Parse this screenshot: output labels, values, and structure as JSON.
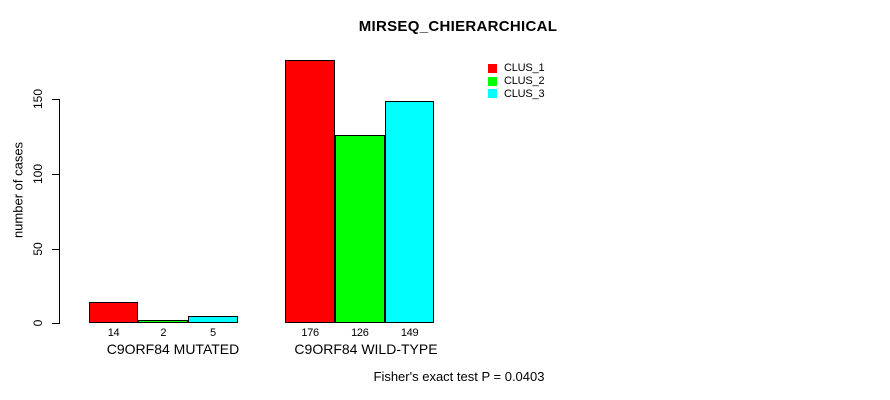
{
  "chart_data": {
    "type": "bar",
    "title": "MIRSEQ_CHIERARCHICAL",
    "ylabel": "number of cases",
    "xlabel": "",
    "categories": [
      "C9ORF84 MUTATED",
      "C9ORF84 WILD-TYPE"
    ],
    "series": [
      {
        "name": "CLUS_1",
        "color": "#FF0000",
        "values": [
          14,
          176
        ]
      },
      {
        "name": "CLUS_2",
        "color": "#00FF00",
        "values": [
          2,
          126
        ]
      },
      {
        "name": "CLUS_3",
        "color": "#00FFFF",
        "values": [
          5,
          149
        ]
      }
    ],
    "bar_value_labels": [
      [
        14,
        2,
        5
      ],
      [
        176,
        126,
        149
      ]
    ],
    "yticks": [
      0,
      50,
      100,
      150
    ],
    "ylim": [
      0,
      176
    ],
    "grid": false,
    "legend_position": "top-right",
    "legend_border": false,
    "annotation": "Fisher's exact test P = 0.0403",
    "background_color": "#FFFFFF",
    "axis_color": "#000000"
  },
  "legend": {
    "items": [
      {
        "label": "CLUS_1",
        "color": "#FF0000"
      },
      {
        "label": "CLUS_2",
        "color": "#00FF00"
      },
      {
        "label": "CLUS_3",
        "color": "#00FFFF"
      }
    ]
  }
}
